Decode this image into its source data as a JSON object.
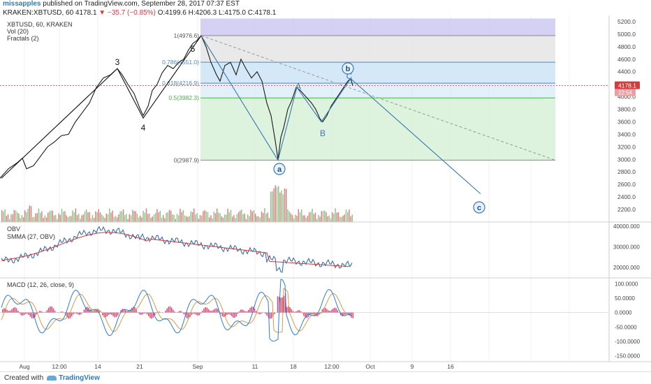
{
  "header": {
    "author": "missapples",
    "published": " published on TradingView.com, September 28, 2017 07:37 EST",
    "symbol_line_prefix": "KRAKEN:XBTUSD, 60  4178.1 ",
    "change": "▼ −35.7 (−0.85%)",
    "ohlc": " O:4199.6 H:4206.3 L:4175.0 C:4178.1"
  },
  "indicators": {
    "symbol": "XBTUSD, 60, KRAKEN",
    "vol": "Vol (20)",
    "fractals": "Fractals (2)",
    "obv": "OBV",
    "smma": "SMMA (27, OBV)",
    "macd": "MACD (12, 26, close, 9)"
  },
  "footer": {
    "created_with": "Created with",
    "brand": "TradingView"
  },
  "chart_data": {
    "type": "line",
    "colors": {
      "price": "#1a1a1a",
      "fib_top": "#c9c5f2",
      "fib_236": "#e4e4e4",
      "fib_382": "#cfe6f7",
      "fib_50": "#d9f2d9",
      "fib_bottom": "#d9f2d9",
      "fib_line": "#4a8abf",
      "fib_green_line": "#4caf50",
      "projection": "#3b78b0",
      "trend_dashed": "#999999",
      "last_price_badge": "#d23c3c",
      "obv": "#2a62a8",
      "smma": "#d23c3c",
      "macd": "#2e7bd6",
      "signal": "#d99a4a",
      "hist": "#d4285e",
      "vol_up": "#5aaf5a",
      "vol_down": "#d24a4a"
    },
    "price_axis": {
      "min": 2000,
      "max": 5300,
      "ticks": [
        5200,
        5000,
        4800,
        4600,
        4400,
        4200,
        4000,
        3800,
        3600,
        3400,
        3200,
        3000,
        2800,
        2600,
        2400,
        2200
      ]
    },
    "last_price": "4178.1",
    "countdown": "22:54",
    "x_axis_ticks": [
      "Aug",
      "12:00",
      "14",
      "21",
      "Sep",
      "11",
      "18",
      "12:00",
      "Oct",
      "9",
      "16"
    ],
    "fib_levels": [
      {
        "label": "1(4976.6)",
        "value": 4976.6
      },
      {
        "label": "0.786(4551.0)",
        "value": 4551.0
      },
      {
        "label": "0.618(4216.9)",
        "value": 4216.9
      },
      {
        "label": "0.5(3982.3)",
        "value": 3982.3
      },
      {
        "label": "0(2987.9)",
        "value": 2987.9
      }
    ],
    "fib_top_value": 5250,
    "wave_labels": [
      "3",
      "4",
      "5",
      "A",
      "B",
      "C"
    ],
    "circle_labels": [
      "a",
      "b",
      "c"
    ],
    "price_path": [
      [
        0,
        2700
      ],
      [
        12,
        2850
      ],
      [
        25,
        2950
      ],
      [
        32,
        3020
      ],
      [
        38,
        2850
      ],
      [
        48,
        2900
      ],
      [
        58,
        3050
      ],
      [
        68,
        3200
      ],
      [
        78,
        3280
      ],
      [
        88,
        3380
      ],
      [
        98,
        3400
      ],
      [
        108,
        3600
      ],
      [
        118,
        3750
      ],
      [
        128,
        3900
      ],
      [
        138,
        4150
      ],
      [
        148,
        4300
      ],
      [
        158,
        4350
      ],
      [
        168,
        4450
      ],
      [
        175,
        4350
      ],
      [
        183,
        4200
      ],
      [
        192,
        4050
      ],
      [
        200,
        3820
      ],
      [
        205,
        3700
      ],
      [
        212,
        3850
      ],
      [
        218,
        4100
      ],
      [
        225,
        4200
      ],
      [
        232,
        4380
      ],
      [
        240,
        4500
      ],
      [
        248,
        4450
      ],
      [
        256,
        4550
      ],
      [
        263,
        4600
      ],
      [
        270,
        4750
      ],
      [
        276,
        4850
      ],
      [
        282,
        4900
      ],
      [
        288,
        4976
      ],
      [
        295,
        4800
      ],
      [
        302,
        4550
      ],
      [
        310,
        4350
      ],
      [
        315,
        4250
      ],
      [
        322,
        4500
      ],
      [
        330,
        4550
      ],
      [
        338,
        4350
      ],
      [
        345,
        4600
      ],
      [
        352,
        4450
      ],
      [
        360,
        4300
      ],
      [
        368,
        4400
      ],
      [
        375,
        4250
      ],
      [
        382,
        3900
      ],
      [
        388,
        3700
      ],
      [
        394,
        3300
      ],
      [
        398,
        3000
      ],
      [
        402,
        3350
      ],
      [
        406,
        3500
      ],
      [
        412,
        3800
      ],
      [
        418,
        3950
      ],
      [
        424,
        4150
      ],
      [
        430,
        4100
      ],
      [
        438,
        4000
      ],
      [
        446,
        3900
      ],
      [
        452,
        3800
      ],
      [
        458,
        3650
      ],
      [
        462,
        3600
      ],
      [
        468,
        3700
      ],
      [
        474,
        3850
      ],
      [
        480,
        3950
      ],
      [
        486,
        4050
      ],
      [
        492,
        4150
      ],
      [
        498,
        4250
      ],
      [
        502,
        4290
      ],
      [
        505,
        4180
      ]
    ],
    "obv_axis": {
      "min": 15000,
      "max": 42000,
      "ticks": [
        {
          "label": "40000.000",
          "value": 40000
        },
        {
          "label": "30000.000",
          "value": 30000
        },
        {
          "label": "20000.000",
          "value": 20000
        }
      ]
    },
    "macd_axis": {
      "min": -170,
      "max": 120,
      "ticks": [
        {
          "label": "100.0000",
          "value": 100
        },
        {
          "label": "50.0000",
          "value": 50
        },
        {
          "label": "0.0000",
          "value": 0
        },
        {
          "label": "-50.0000",
          "value": -50
        },
        {
          "label": "-100.0000",
          "value": -100
        },
        {
          "label": "-150.0000",
          "value": -150
        }
      ]
    }
  }
}
